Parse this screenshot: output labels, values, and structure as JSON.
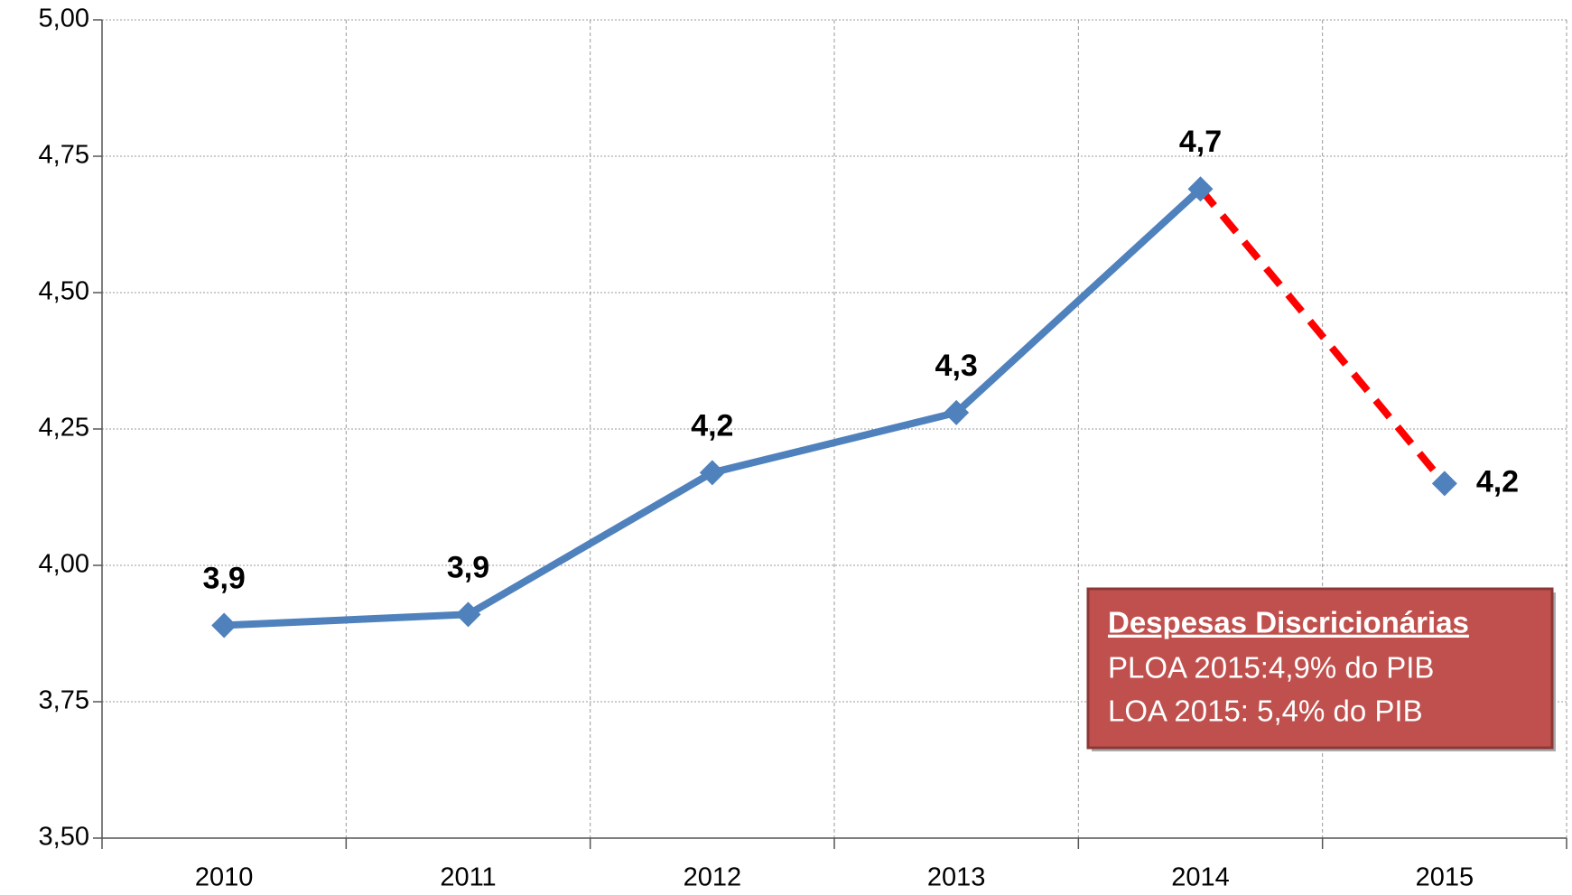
{
  "chart_data": {
    "type": "line",
    "categories": [
      "2010",
      "2011",
      "2012",
      "2013",
      "2014",
      "2015"
    ],
    "series": [
      {
        "color": "#4f81bd",
        "values": [
          3.89,
          3.91,
          4.17,
          4.28,
          4.69,
          4.15
        ],
        "value_labels": [
          "3,9",
          "3,9",
          "4,2",
          "4,3",
          "4,7",
          "4,2"
        ]
      }
    ],
    "projection": {
      "from_index": 4,
      "color": "#ff0000",
      "dashed": true
    },
    "ylim": [
      3.5,
      5.0
    ],
    "yticks": [
      {
        "value": 3.5,
        "label": "3,50"
      },
      {
        "value": 3.75,
        "label": "3,75"
      },
      {
        "value": 4.0,
        "label": "4,00"
      },
      {
        "value": 4.25,
        "label": "4,25"
      },
      {
        "value": 4.5,
        "label": "4,50"
      },
      {
        "value": 4.75,
        "label": "4,75"
      },
      {
        "value": 5.0,
        "label": "5,00"
      }
    ],
    "grid": true,
    "annotation": {
      "title": "Despesas Discricionárias",
      "lines": [
        "PLOA 2015:4,9% do PIB",
        "LOA 2015: 5,4% do PIB"
      ],
      "color": "#c0504d"
    }
  }
}
